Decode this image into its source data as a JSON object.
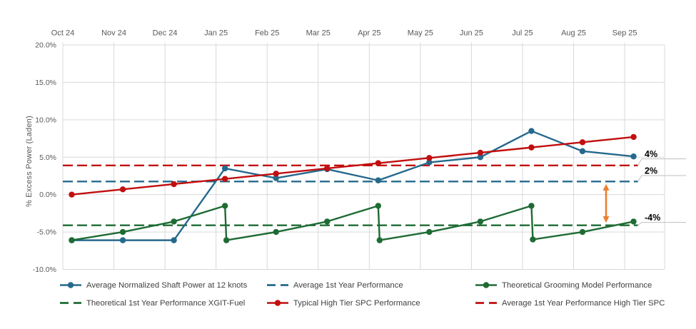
{
  "chart_data": {
    "type": "line",
    "title": "",
    "y_axis_label": "% Excess Power (Laden)",
    "x_categories": [
      "Oct 24",
      "Nov 24",
      "Dec 24",
      "Jan 25",
      "Feb 25",
      "Mar 25",
      "Apr 25",
      "May 25",
      "Jun 25",
      "Jul 25",
      "Aug 25",
      "Sep 25"
    ],
    "y_tick_labels": [
      "20.0%",
      "15.0%",
      "10.0%",
      "5.0%",
      "0.0%",
      "-5.0%",
      "-10.0%"
    ],
    "y_tick_values": [
      20,
      15,
      10,
      5,
      0,
      -5,
      -10
    ],
    "ylim": [
      -10,
      20
    ],
    "grid": true,
    "x_axis_position": "top",
    "legend_position": "bottom",
    "series": [
      {
        "name": "Average Normalized Shaft Power at 12 knots",
        "style": "solid",
        "markers": true,
        "color": "#26698C",
        "values": [
          -6.1,
          -6.1,
          -6.1,
          3.5,
          2.2,
          3.4,
          1.9,
          4.3,
          5.0,
          8.5,
          5.8,
          5.1
        ]
      },
      {
        "name": "Theoretical Grooming Model Performance",
        "style": "solid",
        "markers": true,
        "color": "#1E6B34",
        "values": [
          -6.1,
          -5.0,
          -3.6,
          [
            -1.5,
            -6.1
          ],
          -5.0,
          -3.6,
          [
            -1.5,
            -6.1
          ],
          -5.0,
          -3.6,
          [
            -1.5,
            -6.0
          ],
          -5.0,
          -3.6
        ]
      },
      {
        "name": "Typical High Tier SPC Performance",
        "style": "solid",
        "markers": true,
        "color": "#C20E0E",
        "values": [
          0.0,
          0.7,
          1.4,
          2.1,
          2.8,
          3.5,
          4.2,
          4.9,
          5.6,
          6.3,
          7.0,
          7.7
        ]
      }
    ],
    "reference_lines": [
      {
        "name": "Average 1st Year Performance",
        "style": "dashed",
        "color": "#26698C",
        "value": 1.75,
        "callout": "2%"
      },
      {
        "name": "Theoretical 1st Year Performance XGIT-Fuel",
        "style": "dashed",
        "color": "#1E6B34",
        "value": -4.1,
        "callout": "-4%"
      },
      {
        "name": "Average 1st Year Performance High Tier SPC",
        "style": "dashed",
        "color": "#C20E0E",
        "value": 3.9,
        "callout": "4%"
      }
    ],
    "annotations": {
      "callout_labels": [
        "4%",
        "2%",
        "-4%"
      ],
      "gap_arrow": {
        "color": "#ED7D31",
        "from_value": 1.75,
        "to_value": -4.1,
        "between": [
          "Average 1st Year Performance",
          "Theoretical 1st Year Performance XGIT-Fuel"
        ]
      }
    }
  },
  "legend": {
    "items": [
      {
        "label": "Average Normalized Shaft Power at 12 knots",
        "swatch": "solid-marker",
        "color": "#26698C"
      },
      {
        "label": "Average 1st Year Performance",
        "swatch": "dashed",
        "color": "#26698C"
      },
      {
        "label": "Theoretical Grooming Model Performance",
        "swatch": "solid-marker",
        "color": "#1E6B34"
      },
      {
        "label": "Theoretical 1st Year Performance XGIT-Fuel",
        "swatch": "dashed",
        "color": "#1E6B34"
      },
      {
        "label": "Typical High Tier SPC Performance",
        "swatch": "solid-marker",
        "color": "#C20E0E"
      },
      {
        "label": "Average 1st Year Performance High Tier SPC",
        "swatch": "dashed",
        "color": "#C20E0E"
      }
    ]
  },
  "style": {
    "background": "#FFFFFF",
    "gridline_color": "#D9D9D9",
    "axis_label_color": "#595959",
    "legend_text_color": "#404040",
    "callout_leader_color": "#BFBFBF",
    "arrow_color": "#ED7D31"
  }
}
